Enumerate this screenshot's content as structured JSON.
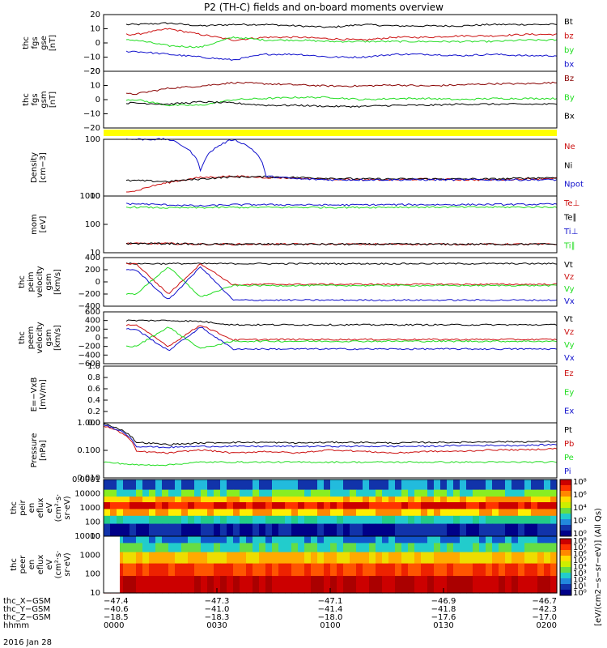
{
  "title": "P2 (TH-C) fields and on-board moments overview",
  "date": "2016 Jan 28",
  "colors": {
    "black": "#000000",
    "red": "#cc1111",
    "green": "#22dd22",
    "blue": "#1111cc",
    "darkred": "#880000",
    "yellow": "#ffff00"
  },
  "chart_data": [
    {
      "type": "line",
      "id": "p1",
      "ylabel": [
        "thc",
        "fgs",
        "gse",
        "[nT]"
      ],
      "yticks": [
        "20",
        "10",
        "0",
        "−10",
        "−20"
      ],
      "ylim": [
        -20,
        20
      ],
      "series": [
        {
          "name": "Bt",
          "color": "black",
          "values": [
            0,
            13,
            14,
            12,
            13,
            13,
            12,
            11,
            13,
            12,
            12,
            12,
            13,
            13,
            13
          ]
        },
        {
          "name": "bz",
          "color": "red",
          "values": [
            0,
            6,
            10,
            6,
            2,
            4,
            4,
            3,
            2,
            4,
            4,
            5,
            5,
            6,
            6
          ]
        },
        {
          "name": "by",
          "color": "green",
          "values": [
            0,
            2,
            -2,
            -3,
            4,
            2,
            2,
            1,
            1,
            1,
            1,
            1,
            1,
            2,
            2
          ]
        },
        {
          "name": "bx",
          "color": "blue",
          "values": [
            0,
            -6,
            -8,
            -10,
            -12,
            -8,
            -8,
            -10,
            -10,
            -8,
            -8,
            -9,
            -8,
            -9,
            -9
          ]
        }
      ]
    },
    {
      "type": "line",
      "id": "p2",
      "ylabel": [
        "thc",
        "fgs",
        "gsm",
        "[nT]"
      ],
      "yticks": [
        "20",
        "10",
        "0",
        "−10",
        "−20"
      ],
      "ylim": [
        -25,
        25
      ],
      "series": [
        {
          "name": "Bz",
          "color": "darkred",
          "values": [
            0,
            5,
            10,
            12,
            15,
            14,
            13,
            12,
            12,
            13,
            12,
            13,
            14,
            14,
            15
          ]
        },
        {
          "name": "By",
          "color": "green",
          "values": [
            0,
            0,
            -5,
            -5,
            0,
            1,
            2,
            2,
            0,
            1,
            1,
            0,
            1,
            1,
            1
          ]
        },
        {
          "name": "Bx",
          "color": "black",
          "values": [
            0,
            -3,
            -4,
            -2,
            -3,
            -5,
            -5,
            -6,
            -6,
            -5,
            -5,
            -4,
            -4,
            -4,
            -4
          ]
        }
      ]
    },
    {
      "type": "line",
      "id": "p3",
      "ylabel": [
        "Density",
        "[cm−3]"
      ],
      "yticks": [
        "100",
        "10"
      ],
      "ylog": true,
      "ylim": [
        4,
        400
      ],
      "series": [
        {
          "name": "Ne",
          "color": "red",
          "values": [
            0,
            6,
            12,
            18,
            20,
            18,
            17,
            16,
            15,
            15,
            16,
            15,
            15,
            16,
            17
          ]
        },
        {
          "name": "Ni",
          "color": "black",
          "values": [
            0,
            14,
            13,
            16,
            19,
            19,
            18,
            17,
            16,
            16,
            16,
            16,
            16,
            17,
            18
          ]
        },
        {
          "name": "Npot",
          "color": "blue",
          "values": [
            0,
            400,
            400,
            30,
            400,
            20,
            16,
            15,
            15,
            15,
            15,
            15,
            15,
            15,
            15
          ]
        }
      ]
    },
    {
      "type": "line",
      "id": "p4",
      "ylabel": [
        "mom",
        "[eV]"
      ],
      "yticks": [
        "1000",
        "100",
        "10"
      ],
      "ylog": true,
      "ylim": [
        8,
        1200
      ],
      "series": [
        {
          "name": "Te⊥",
          "color": "red",
          "values": [
            0,
            18,
            18,
            17,
            17,
            17,
            17,
            17,
            17,
            17,
            17,
            17,
            17,
            17,
            17
          ]
        },
        {
          "name": "Te∥",
          "color": "black",
          "values": [
            0,
            18,
            18,
            17,
            17,
            17,
            17,
            17,
            17,
            17,
            17,
            17,
            17,
            17,
            17
          ]
        },
        {
          "name": "Ti⊥",
          "color": "blue",
          "values": [
            0,
            600,
            550,
            500,
            560,
            560,
            550,
            540,
            550,
            560,
            560,
            560,
            570,
            570,
            580
          ]
        },
        {
          "name": "Ti∥",
          "color": "green",
          "values": [
            0,
            450,
            420,
            430,
            440,
            440,
            440,
            440,
            440,
            450,
            450,
            450,
            450,
            450,
            460
          ]
        }
      ]
    },
    {
      "type": "line",
      "id": "p5",
      "ylabel": [
        "thc",
        "peim",
        "velocity",
        "gsm",
        "[km/s]"
      ],
      "yticks": [
        "400",
        "200",
        "0",
        "−200",
        "−400"
      ],
      "ylim": [
        -400,
        400
      ],
      "series": [
        {
          "name": "Vt",
          "color": "black",
          "values": [
            0,
            300,
            300,
            300,
            300,
            300,
            300,
            300,
            300,
            300,
            300,
            300,
            300,
            300,
            300
          ]
        },
        {
          "name": "Vz",
          "color": "red",
          "values": [
            0,
            300,
            -200,
            300,
            -50,
            -40,
            -40,
            -40,
            -40,
            -40,
            -40,
            -40,
            -40,
            -40,
            -40
          ]
        },
        {
          "name": "Vy",
          "color": "green",
          "values": [
            0,
            -200,
            250,
            -250,
            -60,
            -60,
            -60,
            -60,
            -60,
            -60,
            -60,
            -60,
            -60,
            -60,
            -60
          ]
        },
        {
          "name": "Vx",
          "color": "blue",
          "values": [
            0,
            200,
            -300,
            250,
            -300,
            -300,
            -300,
            -300,
            -300,
            -300,
            -300,
            -300,
            -300,
            -300,
            -300
          ]
        }
      ]
    },
    {
      "type": "line",
      "id": "p6",
      "ylabel": [
        "thc",
        "peem",
        "velocity",
        "gsm",
        "[km/s]"
      ],
      "yticks": [
        "600",
        "400",
        "200",
        "0",
        "−200",
        "−400",
        "−600"
      ],
      "ylim": [
        -600,
        600
      ],
      "series": [
        {
          "name": "Vt",
          "color": "black",
          "values": [
            0,
            400,
            400,
            380,
            300,
            300,
            300,
            300,
            300,
            300,
            300,
            300,
            300,
            300,
            300
          ]
        },
        {
          "name": "Vz",
          "color": "red",
          "values": [
            0,
            300,
            -200,
            300,
            -50,
            -40,
            -40,
            -40,
            -40,
            -40,
            -40,
            -40,
            -40,
            -40,
            -40
          ]
        },
        {
          "name": "Vy",
          "color": "green",
          "values": [
            0,
            -200,
            250,
            -250,
            -80,
            -80,
            -80,
            -80,
            -80,
            -80,
            -80,
            -80,
            -80,
            -80,
            -80
          ]
        },
        {
          "name": "Vx",
          "color": "blue",
          "values": [
            0,
            200,
            -300,
            250,
            -260,
            -260,
            -260,
            -260,
            -260,
            -260,
            -260,
            -260,
            -260,
            -260,
            -260
          ]
        }
      ]
    },
    {
      "type": "line",
      "id": "p7",
      "ylabel": [
        "E=−VxB",
        "[mV/m]"
      ],
      "yticks": [
        "1.0",
        "0.8",
        "0.6",
        "0.4",
        "0.2",
        "0.0"
      ],
      "ylim": [
        0,
        1
      ],
      "series": [
        {
          "name": "Ez",
          "color": "red",
          "values": []
        },
        {
          "name": "Ey",
          "color": "green",
          "values": []
        },
        {
          "name": "Ex",
          "color": "blue",
          "values": []
        }
      ]
    },
    {
      "type": "line",
      "id": "p8",
      "ylabel": [
        "Pressure",
        "[nPa]"
      ],
      "yticks": [
        "1.000",
        "0.100",
        "0.010"
      ],
      "ylog": true,
      "ylim": [
        0.004,
        1.1
      ],
      "series": [
        {
          "name": "Pt",
          "color": "black",
          "values": [
            1.0,
            0.15,
            0.12,
            0.14,
            0.15,
            0.15,
            0.14,
            0.15,
            0.15,
            0.14,
            0.15,
            0.15,
            0.16,
            0.16,
            0.16
          ]
        },
        {
          "name": "Pb",
          "color": "red",
          "values": [
            0.8,
            0.06,
            0.05,
            0.07,
            0.05,
            0.06,
            0.05,
            0.07,
            0.06,
            0.05,
            0.06,
            0.06,
            0.07,
            0.07,
            0.08
          ]
        },
        {
          "name": "Pe",
          "color": "green",
          "values": [
            0.02,
            0.015,
            0.015,
            0.02,
            0.02,
            0.02,
            0.02,
            0.02,
            0.02,
            0.02,
            0.02,
            0.02,
            0.02,
            0.02,
            0.02
          ]
        },
        {
          "name": "Pi",
          "color": "blue",
          "values": [
            0.9,
            0.1,
            0.09,
            0.1,
            0.1,
            0.1,
            0.1,
            0.1,
            0.1,
            0.1,
            0.1,
            0.11,
            0.11,
            0.11,
            0.12
          ]
        }
      ]
    },
    {
      "type": "heatmap",
      "id": "s1",
      "ylabel": [
        "thc",
        "peir",
        "en",
        "eflux",
        "eV",
        "(cm²·s·",
        "sr·eV)"
      ],
      "yticks": [
        "0.0001",
        "10000",
        "1000",
        "100",
        "10"
      ]
    },
    {
      "type": "heatmap",
      "id": "s2",
      "ylabel": [
        "thc",
        "peer",
        "en",
        "eflux",
        "eV",
        "(cm²·s·",
        "sr·eV)"
      ],
      "yticks": [
        "10000",
        "1000",
        "100",
        "10"
      ]
    },
    {
      "type": "colorbar",
      "id": "cb",
      "label": "[eV/(cm2−s−sr−eV)] (All Qs)",
      "ticks1": [
        "10⁸",
        "10⁶",
        "10⁴",
        "10²",
        "10⁰"
      ],
      "ticks2": [
        "10⁸",
        "10⁷",
        "10⁶",
        "10⁵",
        "10⁴",
        "10³",
        "10²",
        "10¹",
        "10⁰"
      ]
    }
  ],
  "xaxis": {
    "tick_times": [
      "0000",
      "0030",
      "0100",
      "0130",
      "0200"
    ],
    "rows": [
      {
        "label": "thc_X−GSM",
        "values": [
          "−47.4",
          "−47.3",
          "−47.1",
          "−46.9",
          "−46.7"
        ]
      },
      {
        "label": "thc_Y−GSM",
        "values": [
          "−40.6",
          "−41.0",
          "−41.4",
          "−41.8",
          "−42.3"
        ]
      },
      {
        "label": "thc_Z−GSM",
        "values": [
          "−18.5",
          "−18.3",
          "−18.0",
          "−17.6",
          "−17.0"
        ]
      },
      {
        "label": "hhmm",
        "values": [
          "0000",
          "0030",
          "0100",
          "0130",
          "0200"
        ]
      }
    ]
  }
}
